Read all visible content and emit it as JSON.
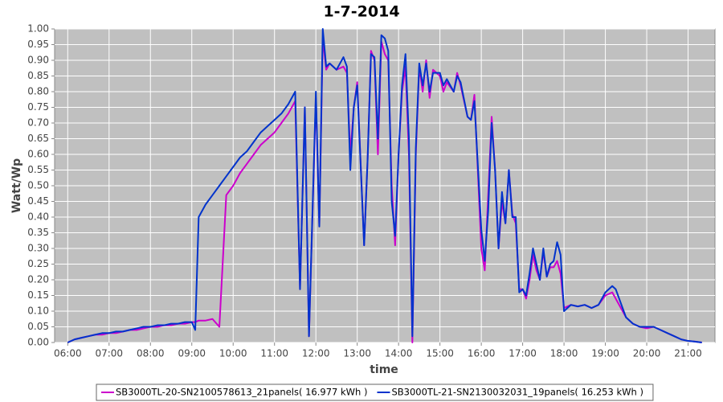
{
  "chart_data": {
    "type": "line",
    "title": "1-7-2014",
    "x_label": "time",
    "y_label": "Watt/Wp",
    "x": [
      "06:00",
      "06:10",
      "06:20",
      "06:30",
      "06:40",
      "06:50",
      "07:00",
      "07:10",
      "07:20",
      "07:30",
      "07:40",
      "07:50",
      "08:00",
      "08:10",
      "08:20",
      "08:30",
      "08:40",
      "08:50",
      "09:00",
      "09:05",
      "09:10",
      "09:20",
      "09:30",
      "09:40",
      "09:50",
      "10:00",
      "10:10",
      "10:20",
      "10:30",
      "10:40",
      "10:50",
      "11:00",
      "11:10",
      "11:20",
      "11:30",
      "11:37",
      "11:44",
      "11:50",
      "12:00",
      "12:05",
      "12:10",
      "12:15",
      "12:20",
      "12:30",
      "12:40",
      "12:45",
      "12:50",
      "12:55",
      "13:00",
      "13:10",
      "13:15",
      "13:20",
      "13:25",
      "13:30",
      "13:35",
      "13:40",
      "13:45",
      "13:50",
      "13:55",
      "14:00",
      "14:05",
      "14:10",
      "14:15",
      "14:20",
      "14:25",
      "14:30",
      "14:35",
      "14:40",
      "14:45",
      "14:50",
      "15:00",
      "15:05",
      "15:10",
      "15:20",
      "15:25",
      "15:30",
      "15:40",
      "15:45",
      "15:50",
      "16:00",
      "16:05",
      "16:10",
      "16:15",
      "16:20",
      "16:25",
      "16:30",
      "16:35",
      "16:40",
      "16:45",
      "16:50",
      "16:55",
      "17:00",
      "17:05",
      "17:10",
      "17:15",
      "17:20",
      "17:25",
      "17:30",
      "17:35",
      "17:40",
      "17:45",
      "17:50",
      "17:55",
      "18:00",
      "18:10",
      "18:20",
      "18:30",
      "18:40",
      "18:50",
      "19:00",
      "19:10",
      "19:15",
      "19:20",
      "19:30",
      "19:40",
      "19:50",
      "20:00",
      "20:10",
      "20:20",
      "20:30",
      "20:40",
      "20:50",
      "21:00",
      "21:10",
      "21:20"
    ],
    "series": [
      {
        "name": "SB3000TL-20-SN2100578613_21panels( 16.977 kWh )",
        "color": "#cc00cc",
        "values": [
          0,
          0.01,
          0.015,
          0.02,
          0.025,
          0.025,
          0.03,
          0.03,
          0.035,
          0.04,
          0.04,
          0.045,
          0.05,
          0.05,
          0.055,
          0.055,
          0.06,
          0.06,
          0.065,
          0.065,
          0.07,
          0.07,
          0.075,
          0.05,
          0.47,
          0.5,
          0.54,
          0.57,
          0.6,
          0.63,
          0.65,
          0.67,
          0.7,
          0.73,
          0.77,
          0.17,
          0.75,
          0.02,
          0.78,
          0.37,
          0.97,
          0.87,
          0.89,
          0.87,
          0.88,
          0.86,
          0.6,
          0.75,
          0.83,
          0.31,
          0.58,
          0.93,
          0.9,
          0.6,
          0.96,
          0.92,
          0.9,
          0.5,
          0.31,
          0.6,
          0.8,
          0.88,
          0.6,
          0,
          0.6,
          0.88,
          0.8,
          0.9,
          0.78,
          0.87,
          0.85,
          0.8,
          0.83,
          0.8,
          0.86,
          0.82,
          0.72,
          0.71,
          0.79,
          0.3,
          0.23,
          0.47,
          0.72,
          0.55,
          0.3,
          0.45,
          0.38,
          0.55,
          0.41,
          0.38,
          0.17,
          0.17,
          0.14,
          0.2,
          0.28,
          0.23,
          0.2,
          0.29,
          0.21,
          0.24,
          0.24,
          0.26,
          0.22,
          0.11,
          0.12,
          0.115,
          0.12,
          0.11,
          0.12,
          0.15,
          0.16,
          0.14,
          0.12,
          0.08,
          0.06,
          0.05,
          0.045,
          0.05,
          0.04,
          0.03,
          0.02,
          0.01,
          0.005,
          0.003,
          0
        ]
      },
      {
        "name": "SB3000TL-21-SN2130032031_19panels( 16.253 kWh )",
        "color": "#0033cc",
        "values": [
          0,
          0.01,
          0.015,
          0.02,
          0.025,
          0.03,
          0.03,
          0.035,
          0.035,
          0.04,
          0.045,
          0.05,
          0.05,
          0.055,
          0.055,
          0.06,
          0.06,
          0.065,
          0.065,
          0.04,
          0.4,
          0.44,
          0.47,
          0.5,
          0.53,
          0.56,
          0.59,
          0.61,
          0.64,
          0.67,
          0.69,
          0.71,
          0.73,
          0.76,
          0.8,
          0.17,
          0.75,
          0.02,
          0.8,
          0.37,
          1,
          0.88,
          0.89,
          0.87,
          0.91,
          0.88,
          0.55,
          0.75,
          0.82,
          0.31,
          0.58,
          0.92,
          0.91,
          0.65,
          0.98,
          0.97,
          0.93,
          0.45,
          0.34,
          0.6,
          0.82,
          0.92,
          0.65,
          0.02,
          0.62,
          0.89,
          0.82,
          0.89,
          0.8,
          0.86,
          0.86,
          0.82,
          0.84,
          0.8,
          0.85,
          0.83,
          0.72,
          0.71,
          0.77,
          0.36,
          0.26,
          0.42,
          0.7,
          0.55,
          0.3,
          0.48,
          0.38,
          0.55,
          0.4,
          0.4,
          0.16,
          0.17,
          0.15,
          0.22,
          0.3,
          0.25,
          0.2,
          0.3,
          0.21,
          0.25,
          0.26,
          0.32,
          0.28,
          0.1,
          0.12,
          0.115,
          0.12,
          0.11,
          0.12,
          0.16,
          0.18,
          0.17,
          0.14,
          0.08,
          0.06,
          0.05,
          0.05,
          0.05,
          0.04,
          0.03,
          0.02,
          0.01,
          0.005,
          0.003,
          0
        ]
      }
    ],
    "xlim": [
      "05:41",
      "21:39"
    ],
    "xticks": [
      "06:00",
      "07:00",
      "08:00",
      "09:00",
      "10:00",
      "11:00",
      "12:00",
      "13:00",
      "14:00",
      "15:00",
      "16:00",
      "17:00",
      "18:00",
      "19:00",
      "20:00",
      "21:00"
    ],
    "ylim": [
      0,
      1
    ],
    "yticks": [
      {
        "value": 0,
        "label": "0.00"
      },
      {
        "value": 0.05,
        "label": "0.05"
      },
      {
        "value": 0.1,
        "label": "0.10"
      },
      {
        "value": 0.15,
        "label": "0.15"
      },
      {
        "value": 0.2,
        "label": "0.20"
      },
      {
        "value": 0.25,
        "label": "0.25"
      },
      {
        "value": 0.3,
        "label": "0.30"
      },
      {
        "value": 0.35,
        "label": "0.35"
      },
      {
        "value": 0.4,
        "label": "0.40"
      },
      {
        "value": 0.45,
        "label": "0.45"
      },
      {
        "value": 0.5,
        "label": "0.50"
      },
      {
        "value": 0.55,
        "label": "0.55"
      },
      {
        "value": 0.6,
        "label": "0.60"
      },
      {
        "value": 0.65,
        "label": "0.65"
      },
      {
        "value": 0.7,
        "label": "0.70"
      },
      {
        "value": 0.75,
        "label": "0.75"
      },
      {
        "value": 0.8,
        "label": "0.80"
      },
      {
        "value": 0.85,
        "label": "0.85"
      },
      {
        "value": 0.9,
        "label": "0.90"
      },
      {
        "value": 0.95,
        "label": "0.95"
      },
      {
        "value": 1,
        "label": "1.00"
      }
    ],
    "grid": true,
    "legend": "bottom"
  }
}
